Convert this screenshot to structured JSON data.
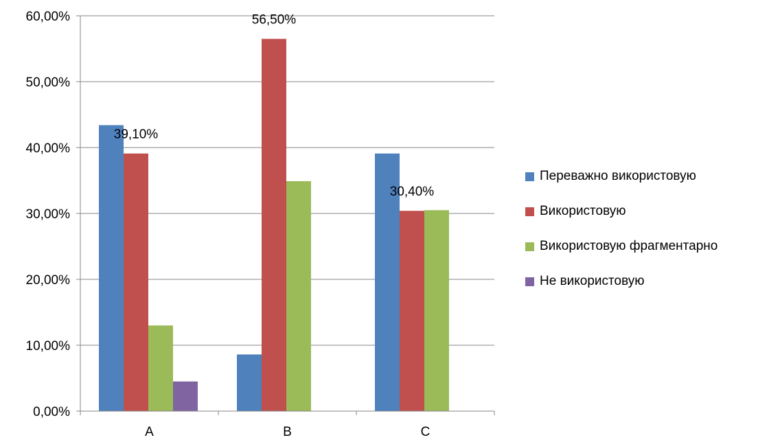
{
  "chart_data": {
    "type": "bar",
    "title": "",
    "xlabel": "",
    "ylabel": "",
    "categories": [
      "A",
      "B",
      "C"
    ],
    "ylim": [
      0,
      0.6
    ],
    "yticks": [
      0,
      0.1,
      0.2,
      0.3,
      0.4,
      0.5,
      0.6
    ],
    "ytick_labels": [
      "0,00%",
      "10,00%",
      "20,00%",
      "30,00%",
      "40,00%",
      "50,00%",
      "60,00%"
    ],
    "grid": true,
    "legend_position": "right",
    "series": [
      {
        "name": "Переважно використовую",
        "color": "#4F81BD",
        "values": [
          0.434,
          0.086,
          0.391
        ]
      },
      {
        "name": "Використовую",
        "color": "#C0504D",
        "values": [
          0.391,
          0.565,
          0.304
        ]
      },
      {
        "name": "Використовую фрагментарно",
        "color": "#9BBB59",
        "values": [
          0.13,
          0.349,
          0.305
        ]
      },
      {
        "name": "Не використовую",
        "color": "#8064A2",
        "values": [
          0.045,
          null,
          null
        ]
      }
    ],
    "data_labels": [
      {
        "category": "A",
        "series": 1,
        "text": "39,10%"
      },
      {
        "category": "B",
        "series": 1,
        "text": "56,50%"
      },
      {
        "category": "C",
        "series": 1,
        "text": "30,40%"
      }
    ]
  }
}
